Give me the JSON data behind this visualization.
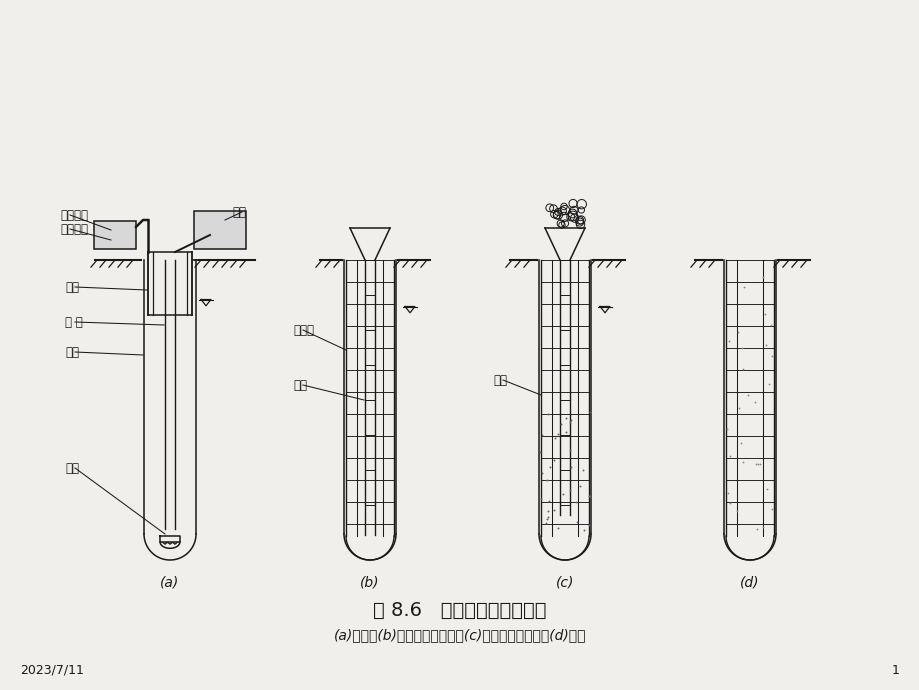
{
  "bg_color": "#f0efeb",
  "line_color": "#1a1a1a",
  "title": "图 8.6   钻孔灌注桩施工程序",
  "subtitle": "(a)成孔；(b)下导管和钢筋笼；(c)浇灌水下混凝土；(d)成桩",
  "date_label": "2023/7/11",
  "page_num": "1",
  "sub_labels": [
    "(a)",
    "(b)",
    "(c)",
    "(d)"
  ],
  "label_a1": "泥浆泵或",
  "label_a1b": "高压水泵",
  "label_a2": "钻机",
  "label_a3": "护筒",
  "label_a4": "钻 杆",
  "label_a5": "泥浆",
  "label_a6": "钻头",
  "label_b1": "钢筋笼",
  "label_b2": "导管",
  "label_c1": "泥浆"
}
